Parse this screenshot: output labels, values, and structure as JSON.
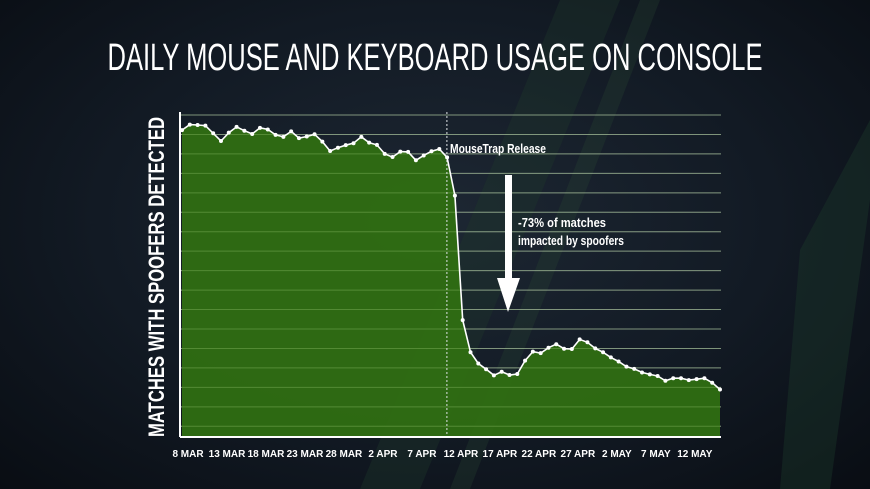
{
  "colors": {
    "fill": "#2f6e12",
    "line": "#ffffff",
    "background": "#111923",
    "gridline": "#c9ced4"
  },
  "chart_data": {
    "type": "area",
    "title": "DAILY MOUSE AND KEYBOARD USAGE ON CONSOLE",
    "ylabel": "MATCHES WITH SPOOFERS DETECTED",
    "xlabel": "",
    "x_tick_labels": [
      "8 MAR",
      "13 MAR",
      "18 MAR",
      "23 MAR",
      "28 MAR",
      "2 APR",
      "7 APR",
      "12 APR",
      "17 APR",
      "22 APR",
      "27 APR",
      "2 MAY",
      "7 MAY",
      "12 MAY"
    ],
    "x_tick_every_days": 5,
    "ylim": [
      0,
      100
    ],
    "y_tick_labels": [],
    "grid": true,
    "values": [
      95.3,
      97.0,
      96.9,
      96.7,
      94.3,
      91.9,
      94.5,
      96.3,
      95.1,
      94.1,
      96.0,
      95.5,
      93.8,
      93.2,
      94.9,
      92.8,
      93.3,
      94.0,
      91.7,
      88.8,
      89.8,
      90.6,
      91.2,
      93.2,
      91.4,
      90.7,
      87.9,
      86.9,
      88.6,
      88.5,
      85.9,
      87.4,
      88.7,
      89.4,
      86.8,
      74.9,
      36.1,
      26.1,
      22.6,
      20.8,
      18.9,
      20.0,
      19.0,
      19.3,
      23.5,
      26.3,
      25.8,
      27.5,
      28.6,
      27.2,
      27.1,
      30.1,
      29.2,
      27.3,
      26.1,
      24.5,
      23.2,
      21.6,
      20.9,
      19.8,
      19.2,
      18.7,
      17.2,
      18.0,
      18.0,
      17.4,
      17.7,
      18.0,
      16.6,
      14.5
    ],
    "annotations": {
      "release_label": "MouseTrap Release",
      "release_at": "12 APR",
      "impact_line1": "-73% of matches",
      "impact_line2": "impacted by spoofers"
    }
  }
}
